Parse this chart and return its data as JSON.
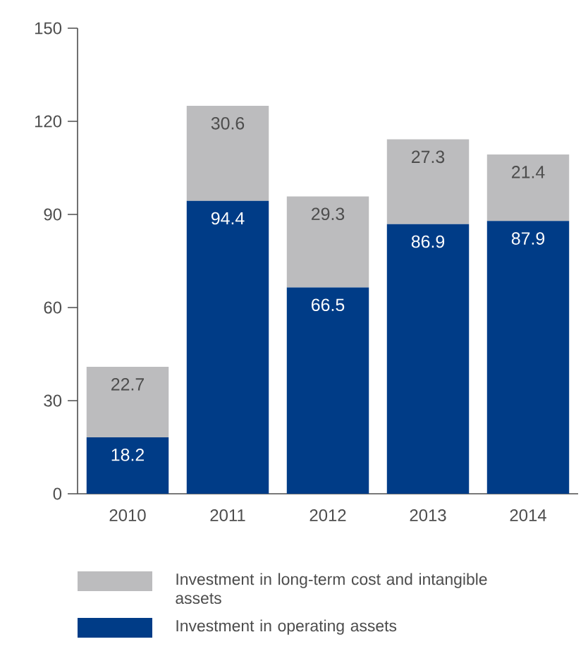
{
  "chart_data": {
    "type": "bar",
    "stacked": true,
    "categories": [
      "2010",
      "2011",
      "2012",
      "2013",
      "2014"
    ],
    "series": [
      {
        "name": "Investment in operating assets",
        "color": "#003c87",
        "values": [
          18.2,
          94.4,
          66.5,
          86.9,
          87.9
        ]
      },
      {
        "name": "Investment in long-term cost and intangible assets",
        "color": "#bcbcbe",
        "values": [
          22.7,
          30.6,
          29.3,
          27.3,
          21.4
        ]
      }
    ],
    "ylim": [
      0,
      150
    ],
    "yticks": [
      0,
      30,
      60,
      90,
      120,
      150
    ],
    "data_labels": true,
    "grid": false,
    "legend": "bottom"
  }
}
